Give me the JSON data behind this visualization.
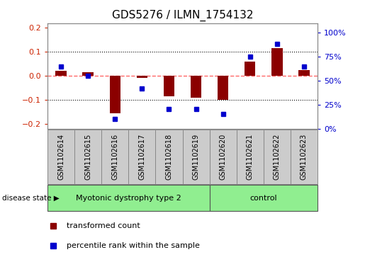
{
  "title": "GDS5276 / ILMN_1754132",
  "samples": [
    "GSM1102614",
    "GSM1102615",
    "GSM1102616",
    "GSM1102617",
    "GSM1102618",
    "GSM1102619",
    "GSM1102620",
    "GSM1102621",
    "GSM1102622",
    "GSM1102623"
  ],
  "red_bars": [
    0.02,
    0.015,
    -0.155,
    -0.01,
    -0.085,
    -0.09,
    -0.1,
    0.06,
    0.115,
    0.025
  ],
  "blue_squares": [
    65,
    55,
    10,
    42,
    20,
    20,
    15,
    75,
    88,
    65
  ],
  "ylim_left": [
    -0.22,
    0.22
  ],
  "ylim_right": [
    0,
    110
  ],
  "yticks_left": [
    -0.2,
    -0.1,
    0.0,
    0.1,
    0.2
  ],
  "yticks_right": [
    0,
    25,
    50,
    75,
    100
  ],
  "ytick_labels_right": [
    "0%",
    "25%",
    "50%",
    "75%",
    "100%"
  ],
  "disease_groups": [
    {
      "label": "Myotonic dystrophy type 2",
      "start": 0,
      "end": 6,
      "color": "#90EE90"
    },
    {
      "label": "control",
      "start": 6,
      "end": 10,
      "color": "#90EE90"
    }
  ],
  "disease_state_label": "disease state",
  "bar_color": "#8B0000",
  "square_color": "#0000CD",
  "legend_red_label": "transformed count",
  "legend_blue_label": "percentile rank within the sample",
  "bg_color": "#FFFFFF",
  "zero_line_color": "#FF6666",
  "sample_box_color": "#CCCCCC",
  "title_fontsize": 11,
  "tick_fontsize": 8,
  "bar_width": 0.4
}
